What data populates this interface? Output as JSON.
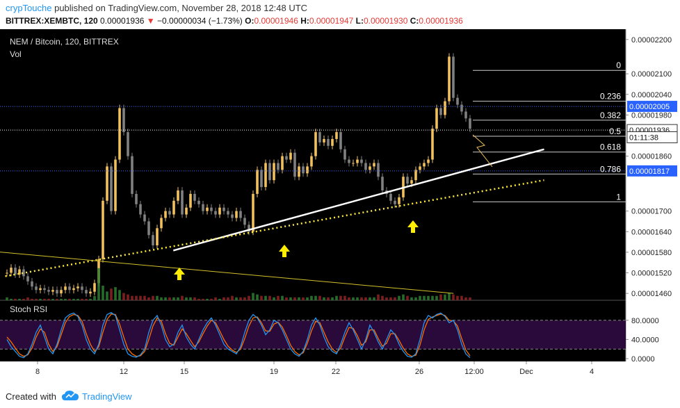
{
  "header": {
    "author": "crypTouche",
    "published_text": " published on TradingView.com, November 28, 2018 12:48 UTC",
    "symbol": "BITTREX:XEMBTC, 120",
    "last": "0.00001936",
    "change_arrow": "▼",
    "change": "−0.00000034 (−1.73%)",
    "o_label": "O:",
    "o_value": "0.00001946",
    "h_label": "H:",
    "h_value": "0.00001947",
    "l_label": "L:",
    "l_value": "0.00001930",
    "c_label": "C:",
    "c_value": "0.00001936"
  },
  "footer": {
    "created_with": "Created with",
    "brand": "TradingView"
  },
  "colors": {
    "background": "#000000",
    "candle": "#f0c060",
    "candle_down": "#808080",
    "accent_blue": "#2962ff",
    "trend_white": "#ffffff",
    "trend_yellow": "#ffeb3b",
    "rsi_k": "#2196f3",
    "rsi_d": "#ff6d00",
    "rsi_band": "#2a0a3a"
  },
  "chart_data": {
    "type": "candlestick",
    "title": "NEM / Bitcoin, 120, BITTREX",
    "volume_label": "Vol",
    "x_ticks": [
      "8",
      "12",
      "15",
      "19",
      "22",
      "26",
      "12:00",
      "Dec",
      "4"
    ],
    "y_ticks": [
      "0.00002200",
      "0.00002100",
      "0.00002040",
      "0.00001980",
      "0.00001860",
      "0.00001700",
      "0.00001640",
      "0.00001580",
      "0.00001520",
      "0.00001460"
    ],
    "ylim": [
      1.44e-05,
      2.23e-05
    ],
    "price_tags": [
      {
        "value": "0.00002005",
        "price": 2.005e-05,
        "style": "blue"
      },
      {
        "value": "0.00001936",
        "price": 1.936e-05,
        "style": "white"
      },
      {
        "value": "01:11:38",
        "price": 1.915e-05,
        "style": "countdown"
      },
      {
        "value": "0.00001817",
        "price": 1.817e-05,
        "style": "blue"
      }
    ],
    "fibonacci": [
      {
        "level": "0",
        "price": 2.11e-05
      },
      {
        "level": "0.236",
        "price": 2.02e-05
      },
      {
        "level": "0.382",
        "price": 1.965e-05
      },
      {
        "level": "0.5",
        "price": 1.918e-05
      },
      {
        "level": "0.618",
        "price": 1.872e-05
      },
      {
        "level": "0.786",
        "price": 1.808e-05
      },
      {
        "level": "1",
        "price": 1.727e-05
      }
    ],
    "candles": [
      1.52,
      1.535,
      1.515,
      1.53,
      1.51,
      1.495,
      1.48,
      1.47,
      1.475,
      1.47,
      1.465,
      1.47,
      1.46,
      1.47,
      1.48,
      1.47,
      1.475,
      1.48,
      1.47,
      1.46,
      1.465,
      1.49,
      1.56,
      1.73,
      1.83,
      1.7,
      1.85,
      2.0,
      1.93,
      1.86,
      1.75,
      1.72,
      1.69,
      1.67,
      1.63,
      1.6,
      1.65,
      1.68,
      1.7,
      1.69,
      1.73,
      1.76,
      1.69,
      1.71,
      1.75,
      1.73,
      1.72,
      1.7,
      1.71,
      1.7,
      1.69,
      1.71,
      1.7,
      1.69,
      1.68,
      1.7,
      1.68,
      1.66,
      1.64,
      1.75,
      1.82,
      1.77,
      1.84,
      1.79,
      1.84,
      1.82,
      1.86,
      1.85,
      1.87,
      1.8,
      1.83,
      1.81,
      1.83,
      1.86,
      1.93,
      1.9,
      1.91,
      1.89,
      1.91,
      1.93,
      1.88,
      1.85,
      1.84,
      1.84,
      1.85,
      1.84,
      1.82,
      1.83,
      1.84,
      1.8,
      1.76,
      1.75,
      1.73,
      1.72,
      1.74,
      1.8,
      1.78,
      1.79,
      1.82,
      1.83,
      1.84,
      1.85,
      1.94,
      2.0,
      1.98,
      2.02,
      2.15,
      2.03,
      2.01,
      1.99,
      1.97,
      1.94
    ],
    "candle_scale": 1e-05,
    "volume": [
      2,
      1,
      1,
      1,
      1,
      2,
      1,
      1,
      1,
      1,
      1,
      1,
      1,
      1,
      1,
      1,
      1,
      1,
      1,
      1,
      1,
      3,
      22,
      10,
      6,
      8,
      9,
      7,
      5,
      4,
      3,
      3,
      3,
      3,
      2,
      3,
      3,
      2,
      2,
      2,
      2,
      2,
      3,
      2,
      2,
      2,
      1,
      1,
      1,
      1,
      2,
      1,
      2,
      2,
      3,
      2,
      2,
      2,
      3,
      5,
      4,
      3,
      3,
      3,
      2,
      3,
      3,
      2,
      2,
      2,
      2,
      2,
      2,
      3,
      3,
      3,
      2,
      2,
      2,
      3,
      3,
      3,
      2,
      2,
      2,
      2,
      2,
      2,
      2,
      4,
      3,
      2,
      2,
      2,
      3,
      4,
      3,
      2,
      2,
      3,
      3,
      3,
      3,
      3,
      4,
      4,
      5,
      4,
      3,
      3,
      2,
      2
    ],
    "trendlines": [
      {
        "name": "",
        "color": "white",
        "from": [
          14.3,
          1.585e-05
        ],
        "to": [
          31.5,
          1.88e-05
        ]
      },
      {
        "name": "",
        "color": "yellow-dotted",
        "from": [
          6.5,
          1.51e-05
        ],
        "to": [
          31.5,
          1.79e-05
        ]
      },
      {
        "name": "",
        "color": "yellow",
        "from": [
          6.0,
          1.582e-05
        ],
        "to": [
          27.3,
          1.46e-05
        ]
      }
    ],
    "stoch_rsi": {
      "label": "Stoch RSI",
      "y_ticks": [
        "80.0000",
        "40.0000",
        "0.0000"
      ],
      "bands": [
        80,
        20
      ],
      "k": [
        40,
        25,
        15,
        5,
        2,
        10,
        30,
        55,
        70,
        45,
        20,
        10,
        30,
        60,
        85,
        92,
        95,
        88,
        70,
        40,
        20,
        10,
        30,
        70,
        92,
        96,
        90,
        60,
        30,
        10,
        5,
        3,
        8,
        20,
        55,
        80,
        90,
        70,
        40,
        25,
        30,
        55,
        70,
        45,
        30,
        20,
        40,
        60,
        75,
        85,
        70,
        50,
        30,
        20,
        15,
        10,
        25,
        55,
        80,
        92,
        85,
        70,
        50,
        60,
        80,
        75,
        60,
        40,
        20,
        10,
        5,
        15,
        40,
        70,
        85,
        70,
        45,
        25,
        15,
        10,
        30,
        55,
        75,
        60,
        40,
        20,
        40,
        70,
        55,
        35,
        20,
        40,
        60,
        50,
        30,
        15,
        5,
        3,
        10,
        40,
        75,
        90,
        85,
        92,
        95,
        88,
        75,
        80,
        60,
        30,
        10,
        2
      ],
      "d": [
        45,
        35,
        22,
        10,
        5,
        8,
        22,
        45,
        62,
        55,
        30,
        15,
        25,
        50,
        75,
        88,
        92,
        90,
        78,
        52,
        30,
        15,
        25,
        55,
        82,
        93,
        92,
        72,
        45,
        20,
        10,
        5,
        6,
        15,
        40,
        68,
        85,
        78,
        52,
        32,
        28,
        45,
        62,
        52,
        38,
        25,
        35,
        52,
        68,
        80,
        75,
        58,
        40,
        26,
        18,
        13,
        20,
        42,
        68,
        85,
        87,
        75,
        58,
        57,
        72,
        76,
        66,
        48,
        28,
        15,
        8,
        12,
        32,
        58,
        78,
        75,
        55,
        35,
        20,
        13,
        22,
        45,
        65,
        63,
        48,
        28,
        35,
        60,
        60,
        42,
        26,
        32,
        52,
        52,
        38,
        22,
        10,
        5,
        7,
        28,
        60,
        82,
        87,
        90,
        93,
        90,
        80,
        79,
        68,
        42,
        18,
        6
      ]
    }
  }
}
